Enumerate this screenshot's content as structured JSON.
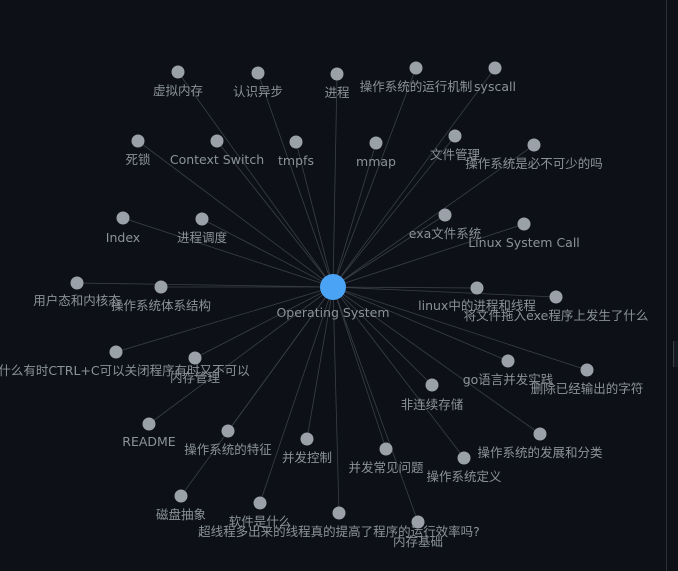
{
  "graph": {
    "colors": {
      "background": "#0d1117",
      "center_node": "#4aa3f5",
      "node": "#9ba1a8",
      "edge": "#3a3f47",
      "label": "#8b929a"
    },
    "center": {
      "label": "Operating System"
    },
    "nodes": [
      {
        "label": "虚拟内存"
      },
      {
        "label": "认识异步"
      },
      {
        "label": "进程"
      },
      {
        "label": "操作系统的运行机制"
      },
      {
        "label": "syscall"
      },
      {
        "label": "死锁"
      },
      {
        "label": "Context Switch"
      },
      {
        "label": "tmpfs"
      },
      {
        "label": "mmap"
      },
      {
        "label": "文件管理"
      },
      {
        "label": "操作系统是必不可少的吗"
      },
      {
        "label": "Index"
      },
      {
        "label": "进程调度"
      },
      {
        "label": "exa文件系统"
      },
      {
        "label": "Linux System Call"
      },
      {
        "label": "用户态和内核态"
      },
      {
        "label": "操作系统体系结构"
      },
      {
        "label": "linux中的进程和线程"
      },
      {
        "label": "将文件拖入exe程序上发生了什么"
      },
      {
        "label": "什么有时CTRL+C可以关闭程序有时又不可以"
      },
      {
        "label": "内存管理"
      },
      {
        "label": "go语言并发实践"
      },
      {
        "label": "删除已经输出的字符"
      },
      {
        "label": "非连续存储"
      },
      {
        "label": "README"
      },
      {
        "label": "操作系统的特征"
      },
      {
        "label": "并发控制"
      },
      {
        "label": "并发常见问题"
      },
      {
        "label": "操作系统的发展和分类"
      },
      {
        "label": "操作系统定义"
      },
      {
        "label": "磁盘抽象"
      },
      {
        "label": "软件是什么"
      },
      {
        "label": "超线程多出来的线程真的提高了程序的运行效率吗?"
      },
      {
        "label": "内存基础"
      }
    ]
  }
}
